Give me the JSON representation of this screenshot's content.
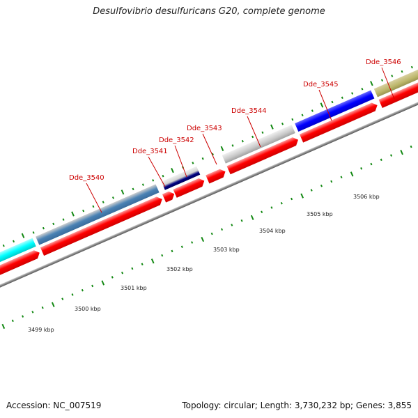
{
  "title": "Desulfovibrio desulfuricans G20, complete genome",
  "footer": {
    "accession": "Accession: NC_007519",
    "summary": "Topology: circular; Length: 3,730,232 bp; Genes: 3,855"
  },
  "colors": {
    "cds": "#ff0000",
    "backbone": "#888888",
    "tick": "#118811",
    "label": "#cc0000"
  },
  "scale_labels": [
    "3499 kbp",
    "3500 kbp",
    "3501 kbp",
    "3502 kbp",
    "3503 kbp",
    "3504 kbp",
    "3505 kbp",
    "3506 kbp"
  ],
  "genes": [
    {
      "name": "Dde_3540",
      "color": "#ff0000"
    },
    {
      "name": "Dde_3541",
      "color": "#ff0000"
    },
    {
      "name": "Dde_3542",
      "color": "#ff0000"
    },
    {
      "name": "Dde_3543",
      "color": "#ff0000"
    },
    {
      "name": "Dde_3544",
      "color": "#ff0000"
    },
    {
      "name": "Dde_3545",
      "color": "#ff0000"
    },
    {
      "name": "Dde_3546",
      "color": "#ff0000"
    }
  ]
}
